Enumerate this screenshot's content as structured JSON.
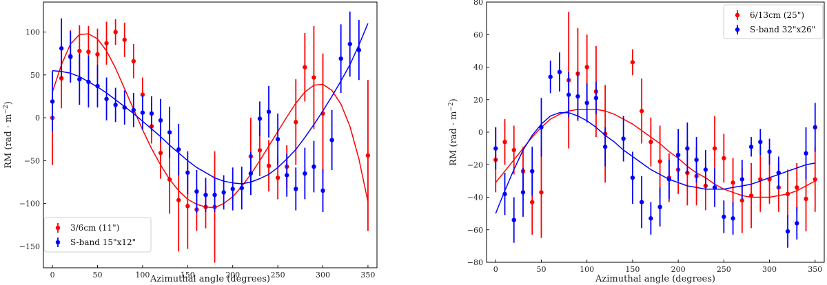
{
  "chart_data": [
    {
      "type": "scatter",
      "panel": "left",
      "xlabel": "Azimuthal angle (degrees)",
      "ylabel": "RM (rad · m",
      "ylabel_sup": "−2",
      "ylabel_close": ")",
      "xlim": [
        -10,
        360
      ],
      "ylim": [
        -175,
        135
      ],
      "xticks": [
        0,
        50,
        100,
        150,
        200,
        250,
        300,
        350
      ],
      "yticks": [
        -150,
        -100,
        -50,
        0,
        50,
        100
      ],
      "legend_position": "bottom-left",
      "series": [
        {
          "name": "3/6cm (11\")",
          "color": "#ff0000",
          "x": [
            0,
            10,
            20,
            30,
            40,
            50,
            60,
            70,
            80,
            90,
            100,
            110,
            120,
            130,
            140,
            150,
            160,
            170,
            180,
            220,
            230,
            240,
            250,
            260,
            270,
            280,
            290,
            300,
            350
          ],
          "y": [
            0,
            46,
            72,
            78,
            77,
            74,
            87,
            100,
            91,
            66,
            27,
            -10,
            -41,
            -72,
            -96,
            -103,
            -107,
            -104,
            -104,
            -45,
            -38,
            -56,
            -70,
            -57,
            -5,
            59,
            47,
            5,
            -44
          ],
          "err": [
            55,
            35,
            30,
            30,
            30,
            30,
            25,
            15,
            20,
            20,
            20,
            20,
            30,
            40,
            60,
            50,
            25,
            25,
            65,
            45,
            30,
            30,
            25,
            25,
            50,
            40,
            60,
            70,
            88
          ],
          "fit_x": [
            0,
            10,
            20,
            30,
            40,
            50,
            60,
            70,
            80,
            90,
            100,
            110,
            120,
            130,
            140,
            150,
            160,
            170,
            180,
            190,
            200,
            210,
            220,
            230,
            240,
            250,
            260,
            270,
            280,
            290,
            300,
            310,
            320,
            330,
            340,
            350
          ],
          "fit_y": [
            30,
            62,
            86,
            97,
            98,
            92,
            78,
            58,
            34,
            10,
            -14,
            -36,
            -55,
            -72,
            -85,
            -95,
            -101,
            -104,
            -105,
            -100,
            -92,
            -80,
            -66,
            -50,
            -33,
            -16,
            1,
            17,
            30,
            38,
            39,
            32,
            16,
            -10,
            -48,
            -98
          ]
        },
        {
          "name": "S-band 15\"x12\"",
          "color": "#0000ff",
          "x": [
            0,
            10,
            20,
            30,
            40,
            50,
            60,
            70,
            80,
            90,
            100,
            110,
            120,
            130,
            140,
            150,
            160,
            170,
            180,
            190,
            200,
            210,
            220,
            230,
            240,
            250,
            260,
            270,
            280,
            290,
            300,
            310,
            320,
            330,
            340
          ],
          "y": [
            19,
            81,
            71,
            45,
            42,
            37,
            22,
            15,
            12,
            9,
            6,
            5,
            -3,
            -17,
            -37,
            -64,
            -86,
            -90,
            -90,
            -87,
            -83,
            -82,
            -65,
            -1,
            7,
            -25,
            -67,
            -83,
            -65,
            -57,
            -85,
            -26,
            69,
            86,
            79
          ],
          "err": [
            35,
            35,
            30,
            30,
            30,
            25,
            25,
            20,
            20,
            20,
            20,
            20,
            25,
            30,
            30,
            25,
            25,
            20,
            20,
            20,
            25,
            25,
            25,
            20,
            30,
            30,
            25,
            25,
            30,
            30,
            25,
            35,
            40,
            38,
            35
          ],
          "fit_x": [
            0,
            10,
            20,
            30,
            40,
            50,
            60,
            70,
            80,
            90,
            100,
            110,
            120,
            130,
            140,
            150,
            160,
            170,
            180,
            190,
            200,
            210,
            220,
            230,
            240,
            250,
            260,
            270,
            280,
            290,
            300,
            310,
            320,
            330,
            340,
            350
          ],
          "fit_y": [
            55,
            54,
            52,
            48,
            42,
            36,
            29,
            21,
            13,
            5,
            -4,
            -13,
            -22,
            -32,
            -41,
            -50,
            -58,
            -64,
            -70,
            -74,
            -76,
            -77,
            -75,
            -71,
            -66,
            -58,
            -48,
            -37,
            -23,
            -8,
            8,
            25,
            43,
            62,
            85,
            110
          ]
        }
      ]
    },
    {
      "type": "scatter",
      "panel": "right",
      "xlabel": "Azimuthal angle (degrees)",
      "ylabel": "RM (rad · m",
      "ylabel_sup": "−2",
      "ylabel_close": ")",
      "xlim": [
        -10,
        360
      ],
      "ylim": [
        -80,
        80
      ],
      "xticks": [
        0,
        50,
        100,
        150,
        200,
        250,
        300,
        350
      ],
      "yticks": [
        -80,
        -60,
        -40,
        -20,
        0,
        20,
        40,
        60,
        80
      ],
      "legend_position": "top-right",
      "series": [
        {
          "name": "6/13cm (25\")",
          "color": "#ff0000",
          "x": [
            0,
            10,
            20,
            30,
            40,
            50,
            80,
            90,
            100,
            110,
            120,
            150,
            160,
            170,
            180,
            190,
            200,
            210,
            220,
            230,
            240,
            250,
            260,
            270,
            280,
            290,
            300,
            310,
            320,
            330,
            340,
            350
          ],
          "y": [
            -17,
            -6,
            -11,
            -24,
            -43,
            -37,
            32,
            36,
            40,
            25,
            -1,
            43,
            13,
            -6,
            -18,
            -28,
            -23,
            -25,
            -27,
            -33,
            -10,
            -16,
            -31,
            -42,
            -39,
            -29,
            -29,
            -34,
            -38,
            -34,
            -41,
            -29
          ],
          "err": [
            20,
            14,
            15,
            15,
            20,
            28,
            42,
            28,
            20,
            28,
            30,
            8,
            20,
            15,
            22,
            15,
            15,
            20,
            18,
            15,
            20,
            15,
            15,
            20,
            20,
            20,
            15,
            15,
            15,
            15,
            20,
            20
          ],
          "fit_x": [
            0,
            10,
            20,
            30,
            40,
            50,
            60,
            70,
            80,
            90,
            100,
            110,
            120,
            130,
            140,
            150,
            160,
            170,
            180,
            190,
            200,
            210,
            220,
            230,
            240,
            250,
            260,
            270,
            280,
            290,
            300,
            310,
            320,
            330,
            340,
            350
          ],
          "fit_y": [
            -31,
            -24,
            -17,
            -10,
            -3,
            3,
            8,
            11,
            13,
            14,
            14,
            14,
            13,
            11,
            8,
            5,
            1,
            -3,
            -7,
            -12,
            -16,
            -21,
            -25,
            -28,
            -32,
            -35,
            -37,
            -39,
            -40,
            -40,
            -40,
            -39,
            -38,
            -36,
            -33,
            -30
          ]
        },
        {
          "name": "S-band 32\"x26\"",
          "color": "#0000ff",
          "x": [
            0,
            10,
            20,
            30,
            40,
            50,
            60,
            70,
            80,
            90,
            100,
            110,
            120,
            140,
            150,
            160,
            170,
            180,
            190,
            200,
            210,
            220,
            230,
            240,
            250,
            260,
            270,
            280,
            290,
            300,
            310,
            320,
            330,
            340,
            350
          ],
          "y": [
            -10,
            -38,
            -54,
            -37,
            -24,
            3,
            34,
            37,
            23,
            22,
            18,
            21,
            -9,
            -4,
            -28,
            -43,
            -53,
            -46,
            -29,
            -14,
            -10,
            -17,
            -23,
            -34,
            -52,
            -53,
            -29,
            -9,
            -6,
            -12,
            -25,
            -61,
            -56,
            -13,
            3
          ],
          "err": [
            13,
            13,
            14,
            15,
            15,
            18,
            10,
            12,
            14,
            15,
            12,
            10,
            12,
            14,
            16,
            16,
            10,
            12,
            12,
            16,
            16,
            14,
            12,
            12,
            10,
            10,
            12,
            6,
            8,
            8,
            10,
            10,
            10,
            16,
            15
          ],
          "fit_x": [
            0,
            10,
            20,
            30,
            40,
            50,
            60,
            70,
            80,
            90,
            100,
            110,
            120,
            130,
            140,
            150,
            160,
            170,
            180,
            190,
            200,
            210,
            220,
            230,
            240,
            250,
            260,
            270,
            280,
            290,
            300,
            310,
            320,
            330,
            340,
            350
          ],
          "fit_y": [
            -50,
            -36,
            -23,
            -11,
            -2,
            5,
            10,
            12,
            12,
            10,
            7,
            3,
            -2,
            -6,
            -11,
            -15,
            -19,
            -23,
            -26,
            -29,
            -31,
            -33,
            -34,
            -35,
            -35,
            -35,
            -34,
            -33,
            -32,
            -30,
            -28,
            -26,
            -24,
            -22,
            -20,
            -19
          ]
        }
      ]
    }
  ]
}
